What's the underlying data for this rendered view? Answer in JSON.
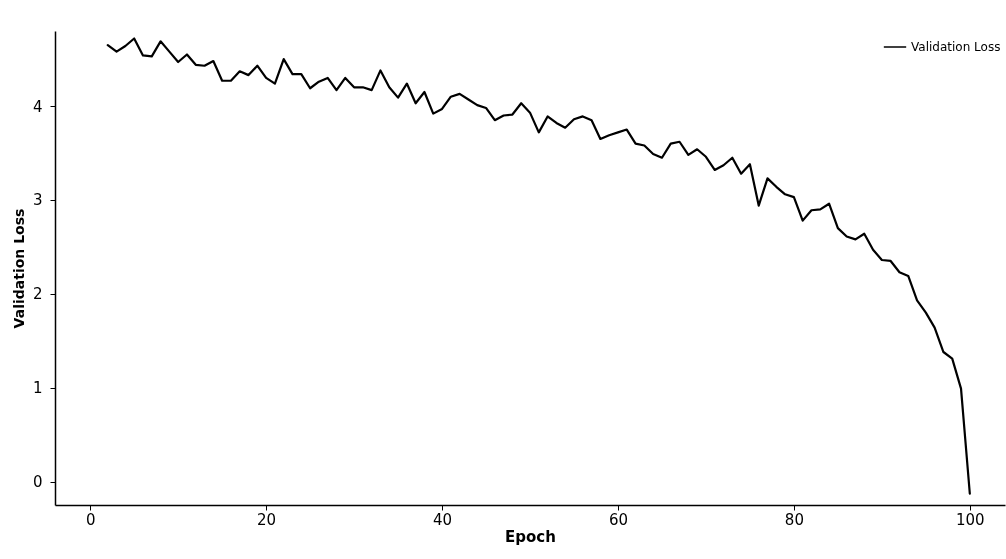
{
  "chart_data": {
    "type": "line",
    "xlabel": "Epoch",
    "ylabel": "Validation Loss",
    "x": [
      2,
      3,
      4,
      5,
      6,
      7,
      8,
      9,
      10,
      11,
      12,
      13,
      14,
      15,
      16,
      17,
      18,
      19,
      20,
      21,
      22,
      23,
      24,
      25,
      26,
      27,
      28,
      29,
      30,
      31,
      32,
      33,
      34,
      35,
      36,
      37,
      38,
      39,
      40,
      41,
      42,
      43,
      44,
      45,
      46,
      47,
      48,
      49,
      50,
      51,
      52,
      53,
      54,
      55,
      56,
      57,
      58,
      59,
      60,
      61,
      62,
      63,
      64,
      65,
      66,
      67,
      68,
      69,
      70,
      71,
      72,
      73,
      74,
      75,
      76,
      77,
      78,
      79,
      80,
      81,
      82,
      83,
      84,
      85,
      86,
      87,
      88,
      89,
      90,
      91,
      92,
      93,
      94,
      95,
      96,
      97,
      98,
      99,
      100
    ],
    "series": [
      {
        "name": "Validation Loss",
        "color": "#000000",
        "values": [
          4.65,
          4.58,
          4.64,
          4.72,
          4.54,
          4.53,
          4.69,
          4.58,
          4.47,
          4.55,
          4.44,
          4.43,
          4.48,
          4.27,
          4.27,
          4.37,
          4.33,
          4.43,
          4.3,
          4.24,
          4.5,
          4.34,
          4.34,
          4.19,
          4.26,
          4.3,
          4.17,
          4.3,
          4.2,
          4.2,
          4.17,
          4.38,
          4.2,
          4.09,
          4.24,
          4.03,
          4.15,
          3.92,
          3.97,
          4.1,
          4.13,
          4.07,
          4.01,
          3.98,
          3.85,
          3.9,
          3.91,
          4.03,
          3.93,
          3.72,
          3.89,
          3.82,
          3.77,
          3.86,
          3.89,
          3.85,
          3.65,
          3.69,
          3.72,
          3.75,
          3.6,
          3.58,
          3.49,
          3.45,
          3.6,
          3.62,
          3.48,
          3.54,
          3.46,
          3.32,
          3.37,
          3.45,
          3.28,
          3.38,
          2.94,
          3.23,
          3.14,
          3.06,
          3.03,
          2.78,
          2.89,
          2.9,
          2.96,
          2.7,
          2.61,
          2.58,
          2.64,
          2.47,
          2.36,
          2.35,
          2.23,
          2.19,
          1.93,
          1.8,
          1.64,
          1.38,
          1.31,
          0.99,
          -0.13
        ]
      }
    ],
    "xlim": [
      -4,
      104
    ],
    "xticks": [
      0,
      20,
      40,
      60,
      80,
      100
    ],
    "ylim": [
      -0.25,
      4.8
    ],
    "yticks": [
      0,
      1,
      2,
      3,
      4
    ],
    "grid": false,
    "legend": "top right",
    "marker": "none",
    "line_style": "solid"
  }
}
